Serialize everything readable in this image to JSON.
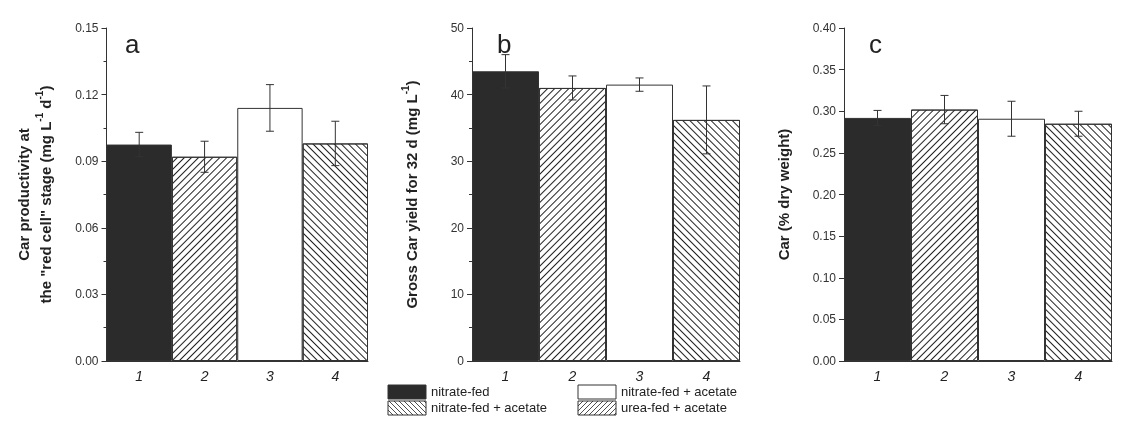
{
  "chart_data": [
    {
      "type": "bar",
      "title": "a",
      "ylabel": "Car productivity at\nthe \"red cell\" stage (mg L$^{-1}$ d$^{-1}$)",
      "categories": [
        "1",
        "2",
        "3",
        "4"
      ],
      "series": [
        {
          "color": "#2b2b2b",
          "values": [
            0.0975,
            null,
            null,
            null
          ],
          "errors": [
            0.0055,
            null,
            null,
            null
          ]
        },
        {
          "color": "#ffffff",
          "values": [
            null,
            0.092,
            null,
            null
          ],
          "errors": [
            null,
            0.007,
            null,
            null
          ]
        },
        {
          "color": "#ffffff",
          "values": [
            null,
            null,
            0.114,
            null
          ],
          "errors": [
            null,
            null,
            0.0105,
            null
          ]
        },
        {
          "color": "#ffffff",
          "values": [
            null,
            null,
            null,
            0.098
          ],
          "errors": [
            null,
            null,
            null,
            0.01
          ]
        }
      ],
      "ylim": [
        0,
        0.15
      ],
      "yticks": [
        {
          "value": 0,
          "label": "0.00"
        },
        {
          "value": 0.03,
          "label": "0.03"
        },
        {
          "value": 0.06,
          "label": "0.06"
        },
        {
          "value": 0.09,
          "label": "0.09"
        },
        {
          "value": 0.12,
          "label": "0.12"
        },
        {
          "value": 0.15,
          "label": "0.15"
        }
      ],
      "grid": false,
      "legend": false
    },
    {
      "type": "bar",
      "title": "b",
      "ylabel": "Gross Car yield for 32 d (mg L$^{-1}$)",
      "categories": [
        "1",
        "2",
        "3",
        "4"
      ],
      "series": [
        {
          "name": "nitrate-fed",
          "color": "#2b2b2b",
          "values": [
            43.5,
            null,
            null,
            null
          ],
          "errors": [
            2.5,
            null,
            null,
            null
          ]
        },
        {
          "name": "nitrate-fed + acetate",
          "color": "#ffffff",
          "values": [
            null,
            41,
            null,
            null
          ],
          "errors": [
            null,
            1.8,
            null,
            null
          ]
        },
        {
          "name": "nitrate-fed + acetate",
          "color": "#ffffff",
          "values": [
            null,
            null,
            41.5,
            null
          ],
          "errors": [
            null,
            null,
            1,
            null
          ]
        },
        {
          "name": "urea-fed + acetate",
          "color": "#ffffff",
          "values": [
            null,
            null,
            null,
            36.2
          ],
          "errors": [
            null,
            null,
            null,
            5.1
          ]
        }
      ],
      "ylim": [
        0,
        50
      ],
      "yticks": [
        0,
        10,
        20,
        30,
        40,
        50
      ],
      "grid": false,
      "legend": "bottom"
    },
    {
      "type": "bar",
      "title": "c",
      "ylabel": "Car (% dry weight)",
      "categories": [
        "1",
        "2",
        "3",
        "4"
      ],
      "series": [
        {
          "color": "#2b2b2b",
          "values": [
            0.292,
            null,
            null,
            null
          ],
          "errors": [
            0.009,
            null,
            null,
            null
          ]
        },
        {
          "color": "#ffffff",
          "values": [
            null,
            0.302,
            null,
            null
          ],
          "errors": [
            null,
            0.017,
            null,
            null
          ]
        },
        {
          "color": "#ffffff",
          "values": [
            null,
            null,
            0.291,
            null
          ],
          "errors": [
            null,
            null,
            0.021,
            null
          ]
        },
        {
          "color": "#ffffff",
          "values": [
            null,
            null,
            null,
            0.285
          ],
          "errors": [
            null,
            null,
            null,
            0.015
          ]
        }
      ],
      "ylim": [
        0,
        0.4
      ],
      "yticks": [
        {
          "value": 0,
          "label": "0.00"
        },
        {
          "value": 0.05,
          "label": "0.05"
        },
        {
          "value": 0.1,
          "label": "0.10"
        },
        {
          "value": 0.15,
          "label": "0.15"
        },
        {
          "value": 0.2,
          "label": "0.20"
        },
        {
          "value": 0.25,
          "label": "0.25"
        },
        {
          "value": 0.3,
          "label": "0.30"
        },
        {
          "value": 0.35,
          "label": "0.35"
        },
        {
          "value": 0.4,
          "label": "0.40"
        }
      ],
      "grid": false,
      "legend": false
    }
  ]
}
